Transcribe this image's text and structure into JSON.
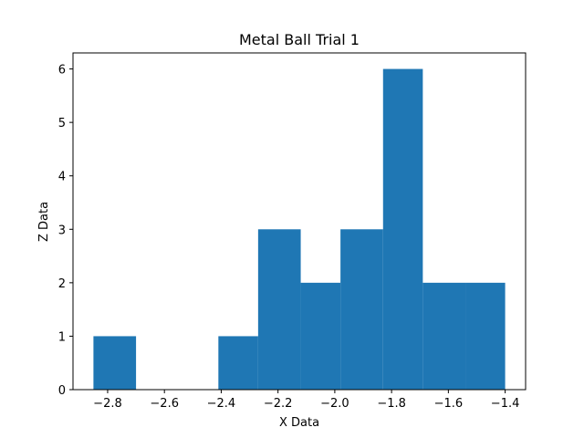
{
  "chart_data": {
    "type": "bar",
    "title": "Metal Ball Trial 1",
    "xlabel": "X Data",
    "ylabel": "Z Data",
    "bins": [
      {
        "x0": -2.85,
        "x1": -2.7,
        "count": 1
      },
      {
        "x0": -2.7,
        "x1": -2.56,
        "count": 0
      },
      {
        "x0": -2.56,
        "x1": -2.41,
        "count": 0
      },
      {
        "x0": -2.41,
        "x1": -2.27,
        "count": 1
      },
      {
        "x0": -2.27,
        "x1": -2.12,
        "count": 3
      },
      {
        "x0": -2.12,
        "x1": -1.98,
        "count": 2
      },
      {
        "x0": -1.98,
        "x1": -1.83,
        "count": 3
      },
      {
        "x0": -1.83,
        "x1": -1.69,
        "count": 6
      },
      {
        "x0": -1.69,
        "x1": -1.54,
        "count": 2
      },
      {
        "x0": -1.54,
        "x1": -1.4,
        "count": 2
      }
    ],
    "xlim": [
      -2.922,
      -1.328
    ],
    "ylim": [
      0,
      6.3
    ],
    "xticks": [
      -2.8,
      -2.6,
      -2.4,
      -2.2,
      -2.0,
      -1.8,
      -1.6,
      -1.4
    ],
    "xtick_labels": [
      "−2.8",
      "−2.6",
      "−2.4",
      "−2.2",
      "−2.0",
      "−1.8",
      "−1.6",
      "−1.4"
    ],
    "yticks": [
      0,
      1,
      2,
      3,
      4,
      5,
      6
    ],
    "ytick_labels": [
      "0",
      "1",
      "2",
      "3",
      "4",
      "5",
      "6"
    ],
    "bar_color": "#1f77b4",
    "grid": false,
    "legend": false
  }
}
